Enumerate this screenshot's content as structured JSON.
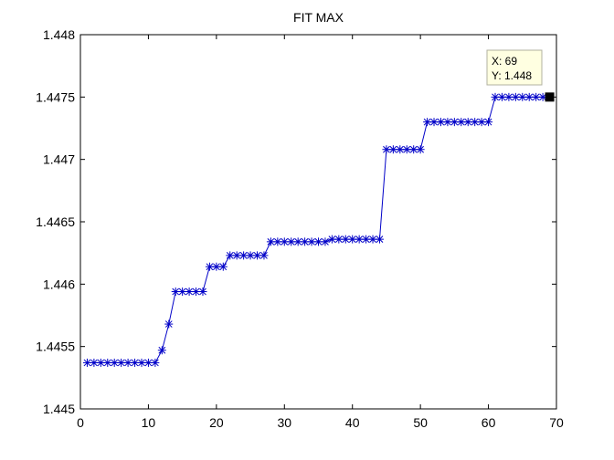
{
  "chart_data": {
    "type": "line",
    "title": "FIT MAX",
    "xlabel": "",
    "ylabel": "",
    "xlim": [
      0,
      70
    ],
    "ylim": [
      1.445,
      1.448
    ],
    "xticks": [
      0,
      10,
      20,
      30,
      40,
      50,
      60,
      70
    ],
    "xtick_labels": [
      "0",
      "10",
      "20",
      "30",
      "40",
      "50",
      "60",
      "70"
    ],
    "yticks": [
      1.445,
      1.4455,
      1.446,
      1.4465,
      1.447,
      1.4475,
      1.448
    ],
    "ytick_labels": [
      "1.445",
      "1.4455",
      "1.446",
      "1.4465",
      "1.447",
      "1.4475",
      "1.448"
    ],
    "grid": false,
    "marker": "*",
    "series": [
      {
        "color": "#0000c8",
        "x": [
          1,
          2,
          3,
          4,
          5,
          6,
          7,
          8,
          9,
          10,
          11,
          12,
          13,
          14,
          15,
          16,
          17,
          18,
          19,
          20,
          21,
          22,
          23,
          24,
          25,
          26,
          27,
          28,
          29,
          30,
          31,
          32,
          33,
          34,
          35,
          36,
          37,
          38,
          39,
          40,
          41,
          42,
          43,
          44,
          45,
          46,
          47,
          48,
          49,
          50,
          51,
          52,
          53,
          54,
          55,
          56,
          57,
          58,
          59,
          60,
          61,
          62,
          63,
          64,
          65,
          66,
          67,
          68,
          69
        ],
        "y": [
          1.44537,
          1.44537,
          1.44537,
          1.44537,
          1.44537,
          1.44537,
          1.44537,
          1.44537,
          1.44537,
          1.44537,
          1.44537,
          1.44547,
          1.44568,
          1.44594,
          1.44594,
          1.44594,
          1.44594,
          1.44594,
          1.44614,
          1.44614,
          1.44614,
          1.44623,
          1.44623,
          1.44623,
          1.44623,
          1.44623,
          1.44623,
          1.44634,
          1.44634,
          1.44634,
          1.44634,
          1.44634,
          1.44634,
          1.44634,
          1.44634,
          1.44634,
          1.44636,
          1.44636,
          1.44636,
          1.44636,
          1.44636,
          1.44636,
          1.44636,
          1.44636,
          1.44708,
          1.44708,
          1.44708,
          1.44708,
          1.44708,
          1.44708,
          1.4473,
          1.4473,
          1.4473,
          1.4473,
          1.4473,
          1.4473,
          1.4473,
          1.4473,
          1.4473,
          1.4473,
          1.4475,
          1.4475,
          1.4475,
          1.4475,
          1.4475,
          1.4475,
          1.4475,
          1.4475,
          1.4475
        ]
      }
    ],
    "datatip": {
      "x": 69,
      "y": 1.448,
      "x_text": "X: 69",
      "y_text": "Y: 1.448",
      "placement": "above-left"
    }
  }
}
